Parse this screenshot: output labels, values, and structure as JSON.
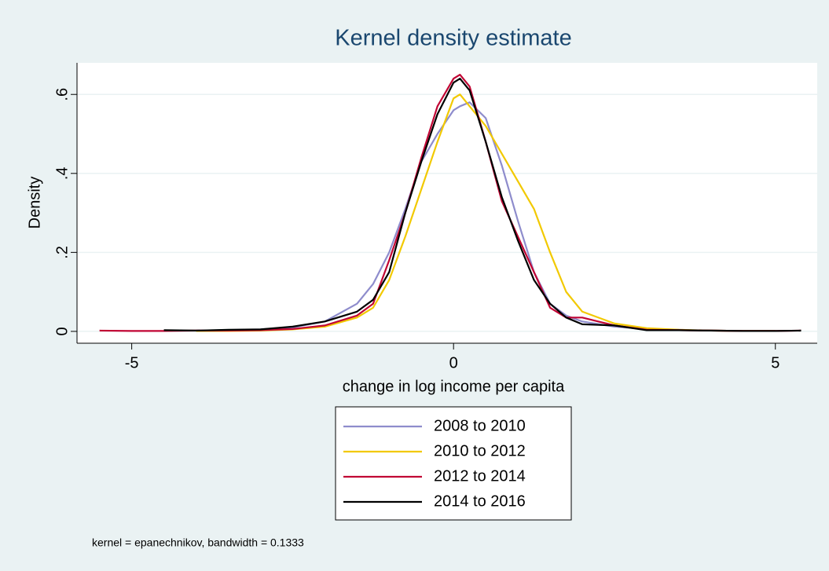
{
  "chart_data": {
    "type": "line",
    "title": "Kernel density estimate",
    "xlabel": "change in log income per capita",
    "ylabel": "Density",
    "note": "kernel = epanechnikov, bandwidth = 0.1333",
    "x": [
      -5.5,
      -5,
      -4.5,
      -4,
      -3.5,
      -3,
      -2.5,
      -2,
      -1.5,
      -1.25,
      -1,
      -0.75,
      -0.5,
      -0.25,
      0,
      0.1,
      0.25,
      0.5,
      0.75,
      1,
      1.25,
      1.5,
      1.75,
      2,
      2.5,
      3,
      3.5,
      4,
      4.5,
      5,
      5.4
    ],
    "series": [
      {
        "name": "2008 to 2010",
        "color": "#8e8ccc",
        "values": [
          null,
          null,
          null,
          0.002,
          0.003,
          0.005,
          0.01,
          0.025,
          0.07,
          0.12,
          0.2,
          0.31,
          0.43,
          0.5,
          0.56,
          0.57,
          0.58,
          0.54,
          0.42,
          0.28,
          0.15,
          0.07,
          0.04,
          0.025,
          0.012,
          0.006,
          0.004,
          0.002,
          0.001,
          0.001,
          null
        ]
      },
      {
        "name": "2010 to 2012",
        "color": "#f2c900",
        "values": [
          null,
          null,
          null,
          0.001,
          0.001,
          0.002,
          0.005,
          0.012,
          0.035,
          0.06,
          0.13,
          0.24,
          0.36,
          0.48,
          0.59,
          0.6,
          0.57,
          0.52,
          0.45,
          0.38,
          0.31,
          0.2,
          0.1,
          0.05,
          0.02,
          0.008,
          0.004,
          0.002,
          0.001,
          0.001,
          null
        ]
      },
      {
        "name": "2012 to 2014",
        "color": "#c10534",
        "values": [
          0.002,
          0.001,
          0.001,
          0.002,
          0.002,
          0.003,
          0.006,
          0.015,
          0.04,
          0.07,
          0.18,
          0.3,
          0.44,
          0.57,
          0.64,
          0.65,
          0.62,
          0.48,
          0.33,
          0.24,
          0.15,
          0.06,
          0.035,
          0.035,
          0.015,
          0.004,
          0.003,
          0.002,
          0.001,
          0.001,
          0.002
        ]
      },
      {
        "name": "2014 to 2016",
        "color": "#000000",
        "values": [
          null,
          null,
          0.003,
          0.002,
          0.004,
          0.005,
          0.012,
          0.025,
          0.05,
          0.08,
          0.15,
          0.3,
          0.43,
          0.55,
          0.63,
          0.64,
          0.61,
          0.48,
          0.34,
          0.23,
          0.13,
          0.07,
          0.035,
          0.018,
          0.015,
          0.003,
          0.003,
          0.002,
          0.001,
          0.001,
          0.002
        ]
      }
    ],
    "xlim": [
      -5.85,
      5.65
    ],
    "ylim": [
      -0.03,
      0.68
    ],
    "xticks": [
      -5,
      0,
      5
    ],
    "yticks": [
      0,
      {
        "value": 0.2,
        "label": ".2"
      },
      {
        "value": 0.4,
        "label": ".4"
      },
      {
        "value": 0.6,
        "label": ".6"
      }
    ],
    "grid": true
  }
}
